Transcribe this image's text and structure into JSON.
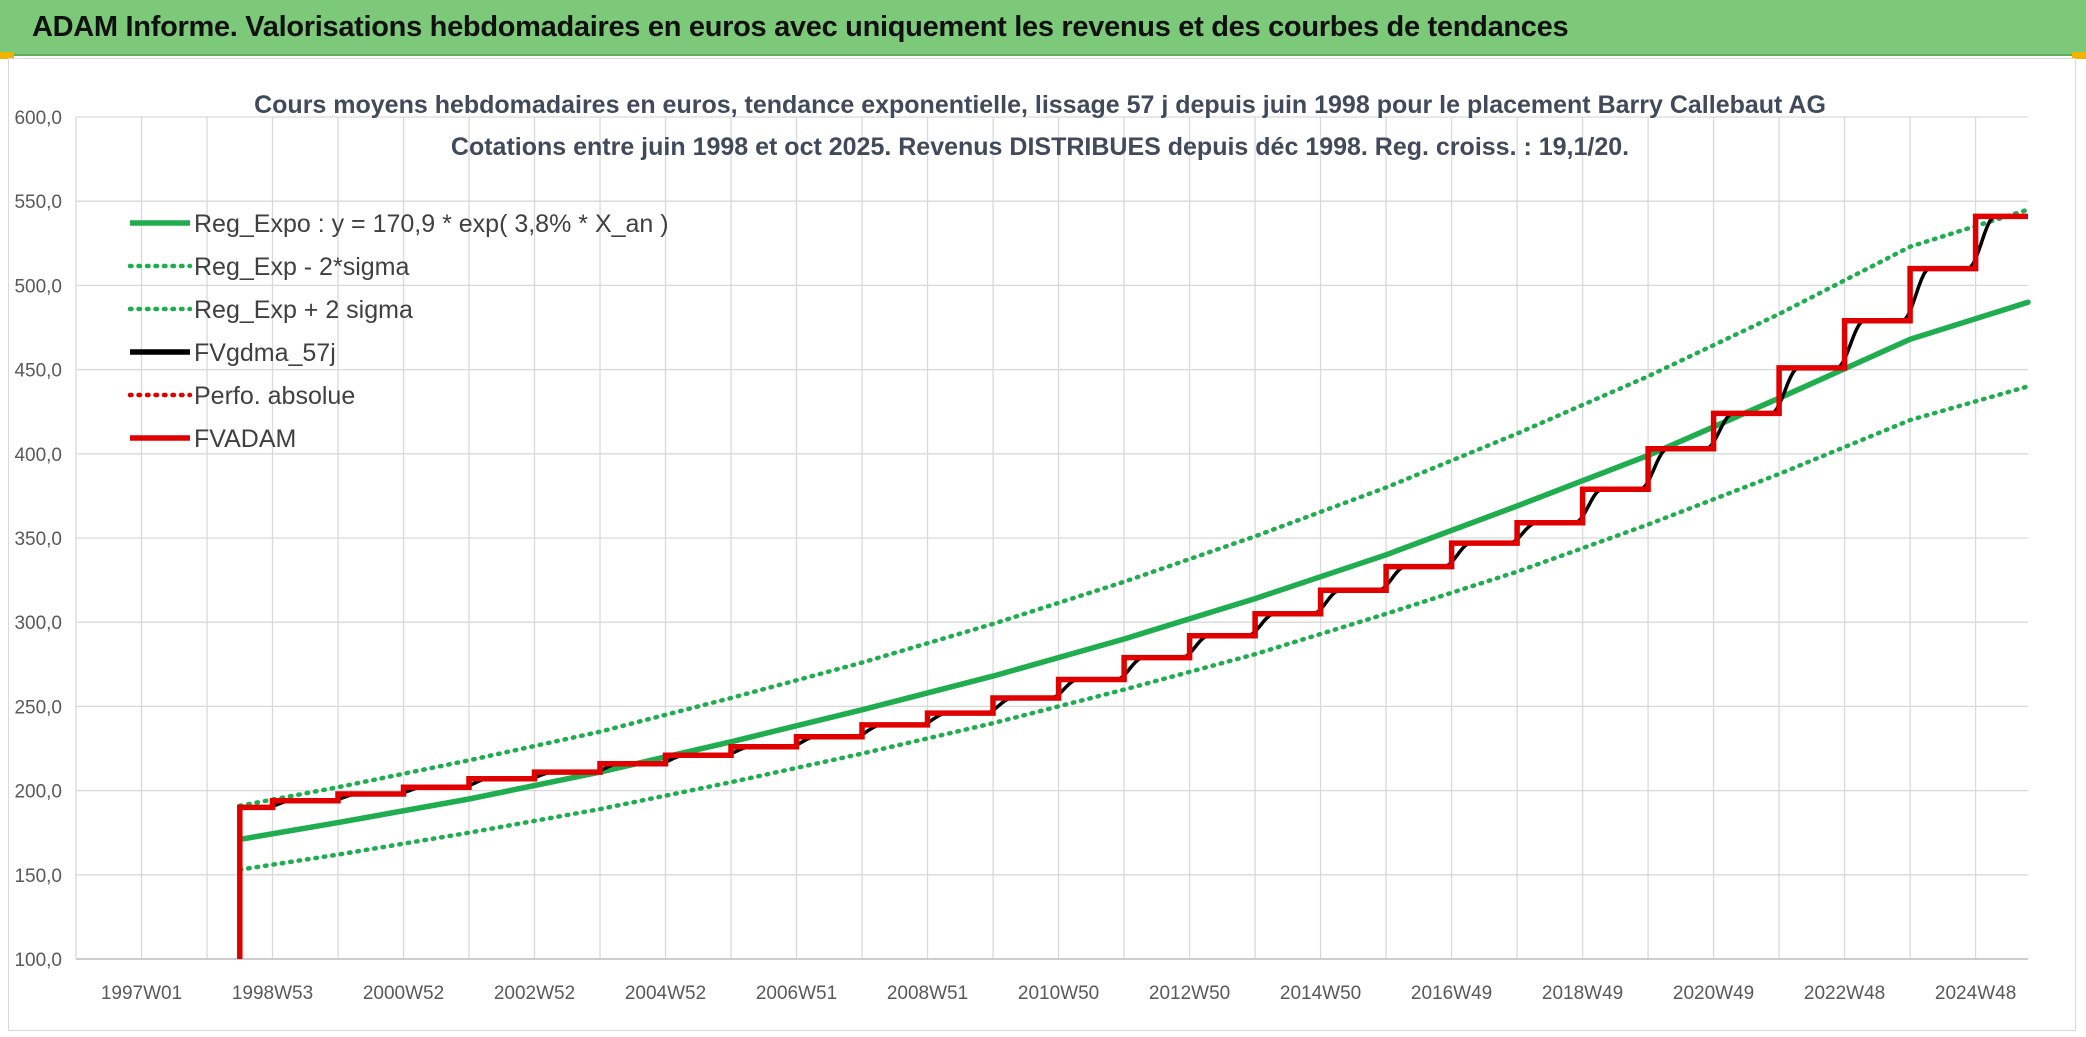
{
  "banner": {
    "title": "ADAM Informe. Valorisations hebdomadaires en euros avec uniquement les revenus et des courbes de tendances"
  },
  "colors": {
    "banner_bg": "#7cc97a",
    "green": "#1fad4f",
    "red": "#e00000",
    "black": "#000000"
  },
  "chart_data": {
    "type": "line",
    "title_lines": [
      "Cours moyens hebdomadaires en euros, tendance exponentielle, lissage 57 j depuis juin 1998 pour le placement Barry Callebaut AG",
      "Cotations entre juin 1998 et oct 2025. Revenus DISTRIBUES depuis déc 1998. Reg. croiss. : 19,1/20."
    ],
    "y_ticks": [
      "100,0",
      "150,0",
      "200,0",
      "250,0",
      "300,0",
      "350,0",
      "400,0",
      "450,0",
      "500,0",
      "550,0",
      "600,0"
    ],
    "ylim": [
      100,
      600
    ],
    "x_ticks": [
      "1997W01",
      "1998W53",
      "2000W52",
      "2002W52",
      "2004W52",
      "2006W51",
      "2008W51",
      "2010W50",
      "2012W50",
      "2014W50",
      "2016W49",
      "2018W49",
      "2020W49",
      "2022W48",
      "2024W48"
    ],
    "x_tick_years": [
      1997.0,
      1999.0,
      2001.0,
      2003.0,
      2005.0,
      2007.0,
      2009.0,
      2011.0,
      2013.0,
      2015.0,
      2017.0,
      2019.0,
      2021.0,
      2023.0,
      2025.0
    ],
    "xlim": [
      1996.0,
      2025.8
    ],
    "grid": true,
    "legend_position": "top-left",
    "legend": [
      {
        "label": "Reg_Expo : y = 170,9 * exp( 3,8% *  X_an )",
        "color": "#1fad4f",
        "style": "solid"
      },
      {
        "label": "Reg_Exp - 2*sigma",
        "color": "#1fad4f",
        "style": "dotted"
      },
      {
        "label": "Reg_Exp + 2 sigma",
        "color": "#1fad4f",
        "style": "dotted"
      },
      {
        "label": "FVgdma_57j",
        "color": "#000000",
        "style": "solid"
      },
      {
        "label": "Perfo. absolue",
        "color": "#e00000",
        "style": "dotted"
      },
      {
        "label": "FVADAM",
        "color": "#e00000",
        "style": "solid"
      }
    ],
    "series": [
      {
        "name": "Reg_Expo : y = 170,9 * exp( 3,8% *  X_an )",
        "x": [
          1998.5,
          2000.0,
          2002.0,
          2004.0,
          2006.0,
          2008.0,
          2010.0,
          2012.0,
          2014.0,
          2016.0,
          2018.0,
          2020.0,
          2022.0,
          2024.0,
          2025.8
        ],
        "values": [
          171,
          181,
          195,
          211,
          229,
          248,
          268,
          290,
          314,
          340,
          369,
          399,
          433,
          468,
          490
        ]
      },
      {
        "name": "Reg_Exp - 2*sigma",
        "x": [
          1998.5,
          2000.0,
          2002.0,
          2004.0,
          2006.0,
          2008.0,
          2010.0,
          2012.0,
          2014.0,
          2016.0,
          2018.0,
          2020.0,
          2022.0,
          2024.0,
          2025.8
        ],
        "values": [
          153,
          162,
          175,
          189,
          205,
          222,
          240,
          260,
          281,
          305,
          330,
          358,
          388,
          420,
          440
        ]
      },
      {
        "name": "Reg_Exp + 2 sigma",
        "x": [
          1998.5,
          2000.0,
          2002.0,
          2004.0,
          2006.0,
          2008.0,
          2010.0,
          2012.0,
          2014.0,
          2016.0,
          2018.0,
          2020.0,
          2022.0,
          2024.0,
          2025.8
        ],
        "values": [
          191,
          202,
          218,
          235,
          255,
          276,
          299,
          324,
          351,
          380,
          412,
          446,
          483,
          523,
          545
        ]
      },
      {
        "name": "FVADAM",
        "x": [
          1998.5,
          1998.5,
          1999.0,
          2000.0,
          2001.0,
          2002.0,
          2003.0,
          2004.0,
          2005.0,
          2006.0,
          2007.0,
          2008.0,
          2009.0,
          2010.0,
          2011.0,
          2012.0,
          2013.0,
          2014.0,
          2015.0,
          2016.0,
          2017.0,
          2018.0,
          2019.0,
          2020.0,
          2021.0,
          2022.0,
          2023.0,
          2024.0,
          2025.8
        ],
        "values": [
          100,
          190,
          194,
          198,
          202,
          207,
          211,
          216,
          221,
          226,
          232,
          239,
          246,
          255,
          266,
          279,
          292,
          305,
          319,
          333,
          347,
          359,
          379,
          403,
          424,
          451,
          479,
          510,
          541
        ]
      }
    ]
  }
}
